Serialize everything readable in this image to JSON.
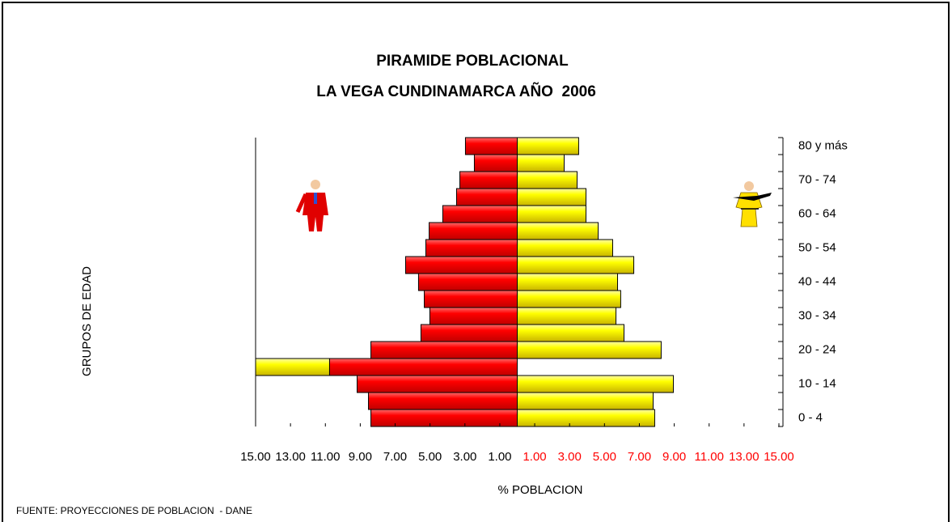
{
  "chart_data": {
    "type": "pyramid",
    "title": [
      "PIRAMIDE POBLACIONAL",
      "LA VEGA CUNDINAMARCA AÑO  2006"
    ],
    "xlabel": "% POBLACION",
    "ylabel": "GRUPOS DE EDAD",
    "source": "FUENTE: PROYECCIONES DE POBLACION  - DANE",
    "categories": [
      "0 - 4",
      null,
      "10 - 14",
      null,
      "20 - 24",
      null,
      "30 - 34",
      null,
      "40 - 44",
      null,
      "50 - 54",
      null,
      "60 - 64",
      null,
      "70 - 74",
      null,
      "80 y más"
    ],
    "series": [
      {
        "color": "#ff0000",
        "values": [
          -8.39,
          -8.53,
          -9.18,
          -10.76,
          -8.39,
          -5.52,
          -5.01,
          -5.33,
          -5.66,
          -6.4,
          -5.24,
          -5.05,
          -4.27,
          -3.48,
          -3.29,
          -2.46,
          -2.97
        ]
      },
      {
        "color": "#ffff00",
        "values": [
          7.88,
          7.79,
          8.95,
          -15.0,
          8.25,
          6.12,
          5.66,
          5.93,
          5.75,
          6.68,
          5.47,
          4.64,
          3.94,
          3.94,
          3.43,
          2.69,
          3.52
        ]
      }
    ],
    "xlim": [
      -15,
      15
    ],
    "xticks": [
      {
        "value": -15,
        "label": "15.00"
      },
      {
        "value": -13,
        "label": "13.00"
      },
      {
        "value": -11,
        "label": "11.00"
      },
      {
        "value": -9,
        "label": "9.00"
      },
      {
        "value": -7,
        "label": "7.00"
      },
      {
        "value": -5,
        "label": "5.00"
      },
      {
        "value": -3,
        "label": "3.00"
      },
      {
        "value": -1,
        "label": "1.00"
      },
      {
        "value": 1,
        "label": "1.00"
      },
      {
        "value": 3,
        "label": "3.00"
      },
      {
        "value": 5,
        "label": "5.00"
      },
      {
        "value": 7,
        "label": "7.00"
      },
      {
        "value": 9,
        "label": "9.00"
      },
      {
        "value": 11,
        "label": "11.00"
      },
      {
        "value": 13,
        "label": "13.00"
      },
      {
        "value": 15,
        "label": "15.00"
      }
    ]
  }
}
